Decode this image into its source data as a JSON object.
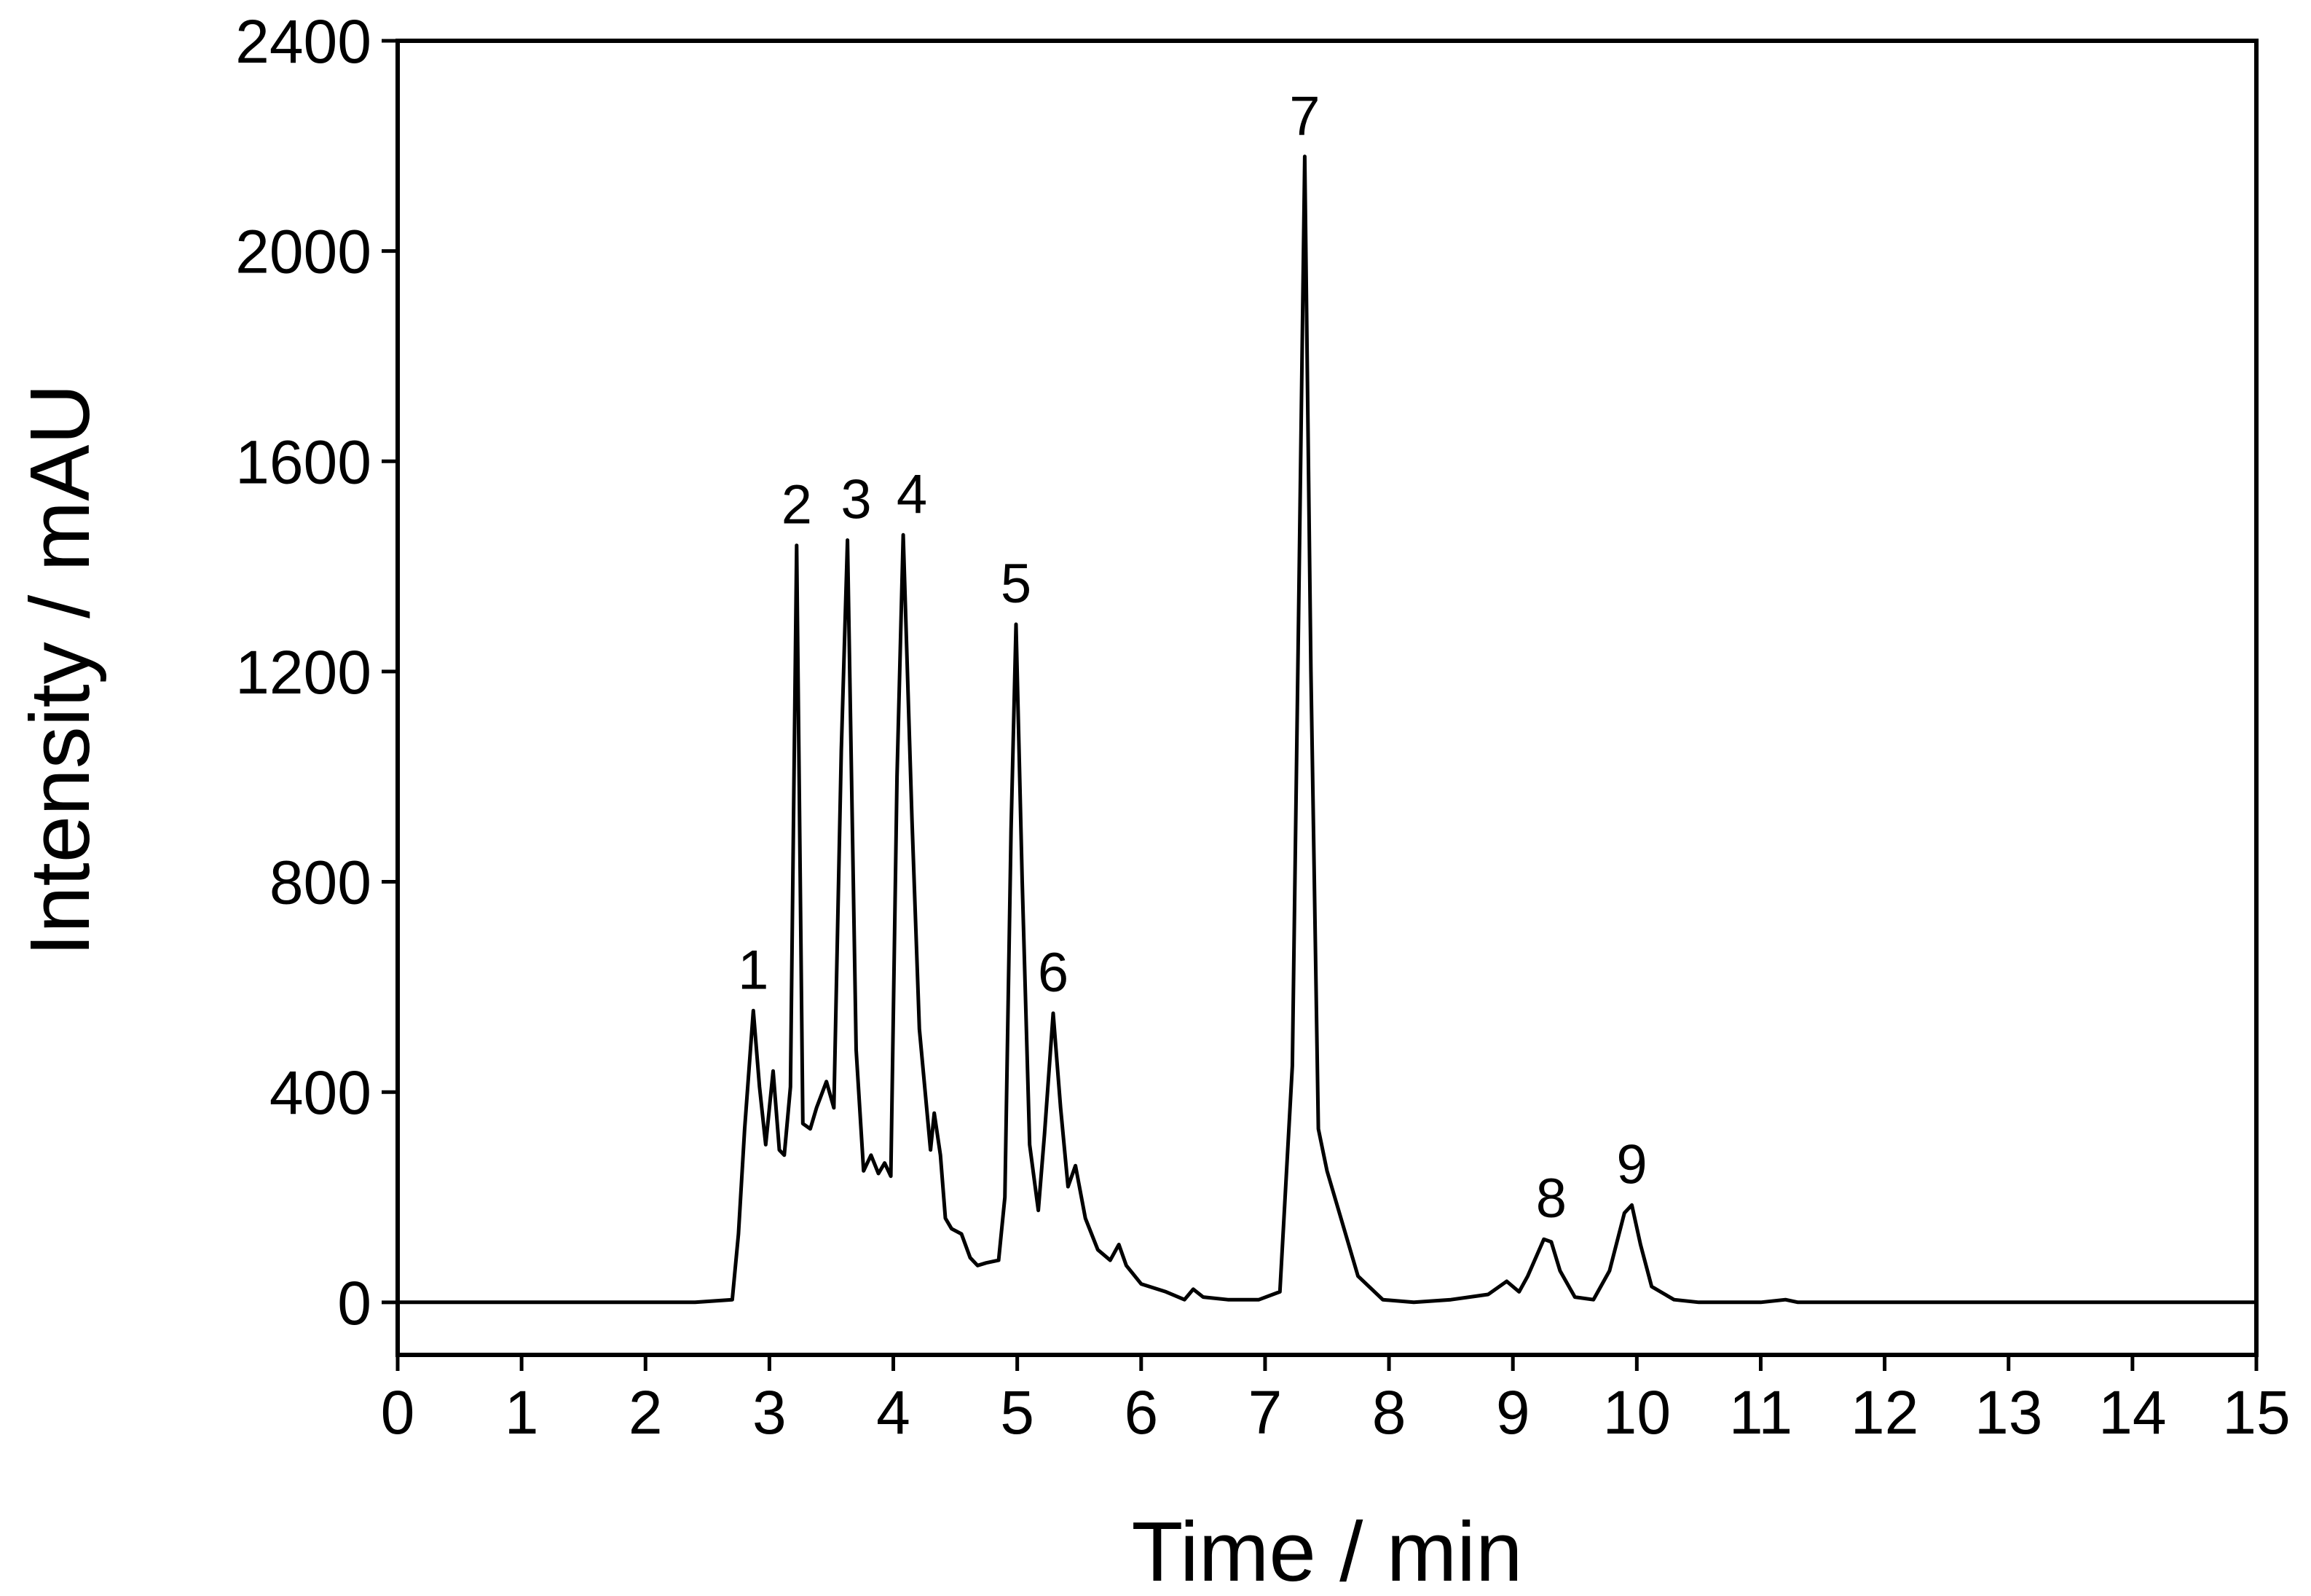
{
  "chart_data": {
    "type": "line",
    "xlabel": "Time / min",
    "ylabel": "Intensity / mAU",
    "xlim": [
      0,
      15
    ],
    "ylim": [
      -100,
      2400
    ],
    "xticks": [
      "0",
      "1",
      "2",
      "3",
      "4",
      "5",
      "6",
      "7",
      "8",
      "9",
      "10",
      "11",
      "12",
      "13",
      "14",
      "15"
    ],
    "yticks": [
      "0",
      "400",
      "800",
      "1200",
      "1600",
      "2000",
      "2400"
    ],
    "grid": false,
    "line_color": "#000000",
    "series": [
      {
        "x": [
          0,
          2.0,
          2.4,
          2.7,
          2.75,
          2.8,
          2.87,
          2.92,
          2.97,
          3.03,
          3.08,
          3.12,
          3.17,
          3.22,
          3.27,
          3.33,
          3.38,
          3.46,
          3.52,
          3.58,
          3.63,
          3.7,
          3.76,
          3.82,
          3.88,
          3.93,
          3.98,
          4.03,
          4.08,
          4.15,
          4.21,
          4.3,
          4.33,
          4.38,
          4.42,
          4.47,
          4.55,
          4.62,
          4.68,
          4.75,
          4.85,
          4.9,
          4.95,
          4.99,
          5.04,
          5.1,
          5.17,
          5.22,
          5.29,
          5.35,
          5.41,
          5.47,
          5.55,
          5.65,
          5.75,
          5.82,
          5.88,
          6.0,
          6.2,
          6.35,
          6.42,
          6.5,
          6.7,
          6.95,
          7.12,
          7.22,
          7.27,
          7.32,
          7.37,
          7.43,
          7.5,
          7.6,
          7.75,
          7.95,
          8.2,
          8.5,
          8.8,
          8.95,
          9.05,
          9.12,
          9.25,
          9.31,
          9.38,
          9.5,
          9.65,
          9.78,
          9.9,
          9.96,
          10.03,
          10.12,
          10.3,
          10.5,
          11.0,
          11.2,
          11.3,
          11.5,
          15.0
        ],
        "values": [
          0,
          0,
          0,
          5,
          130,
          330,
          555,
          410,
          300,
          440,
          290,
          280,
          410,
          1440,
          340,
          330,
          370,
          420,
          370,
          1050,
          1450,
          480,
          250,
          280,
          245,
          265,
          240,
          1000,
          1460,
          920,
          520,
          290,
          360,
          280,
          160,
          140,
          130,
          85,
          70,
          75,
          80,
          200,
          900,
          1290,
          800,
          300,
          175,
          320,
          550,
          370,
          220,
          260,
          160,
          100,
          80,
          110,
          70,
          35,
          20,
          5,
          25,
          10,
          5,
          5,
          20,
          450,
          1300,
          2180,
          1200,
          330,
          250,
          170,
          50,
          5,
          0,
          5,
          15,
          40,
          20,
          50,
          120,
          115,
          60,
          10,
          5,
          60,
          170,
          185,
          110,
          30,
          5,
          0,
          0,
          5,
          0,
          0,
          0
        ]
      }
    ],
    "annotations": [
      {
        "text": "1",
        "x": 2.87,
        "y": 555
      },
      {
        "text": "2",
        "x": 3.22,
        "y": 1440
      },
      {
        "text": "3",
        "x": 3.7,
        "y": 1450
      },
      {
        "text": "4",
        "x": 4.15,
        "y": 1460
      },
      {
        "text": "5",
        "x": 4.99,
        "y": 1290
      },
      {
        "text": "6",
        "x": 5.29,
        "y": 550
      },
      {
        "text": "7",
        "x": 7.32,
        "y": 2180
      },
      {
        "text": "8",
        "x": 9.31,
        "y": 120
      },
      {
        "text": "9",
        "x": 9.96,
        "y": 185
      }
    ]
  }
}
